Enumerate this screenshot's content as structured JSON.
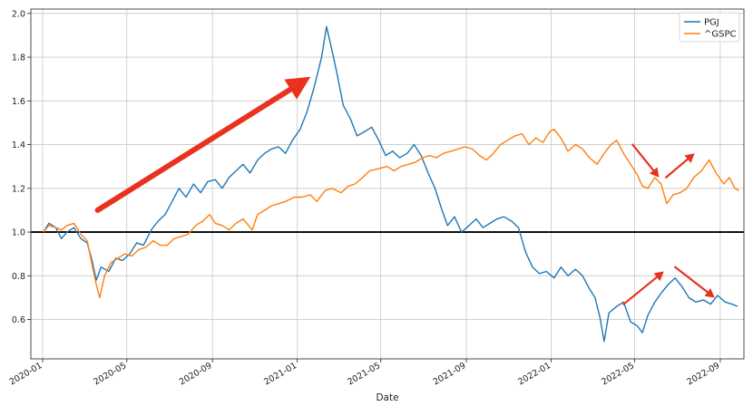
{
  "chart_data": {
    "type": "line",
    "title": "",
    "xlabel": "Date",
    "ylabel": "",
    "x_ticks": [
      "2020-01",
      "2020-05",
      "2020-09",
      "2021-01",
      "2021-05",
      "2021-09",
      "2022-01",
      "2022-05",
      "2022-09"
    ],
    "y_ticks": [
      "0.6",
      "0.8",
      "1.0",
      "1.2",
      "1.4",
      "1.6",
      "1.8",
      "2.0"
    ],
    "xlim": [
      "2019-12-15",
      "2022-10-05"
    ],
    "ylim": [
      0.42,
      2.02
    ],
    "grid": true,
    "legend_position": "top-right",
    "reference_line": {
      "y": 1.0,
      "color": "#000000"
    },
    "series": [
      {
        "name": "PGJ",
        "color": "#1f77b4",
        "points": [
          [
            "2020-01-02",
            1.0
          ],
          [
            "2020-01-10",
            1.04
          ],
          [
            "2020-01-20",
            1.02
          ],
          [
            "2020-01-28",
            0.97
          ],
          [
            "2020-02-05",
            1.0
          ],
          [
            "2020-02-15",
            1.02
          ],
          [
            "2020-02-25",
            0.97
          ],
          [
            "2020-03-05",
            0.95
          ],
          [
            "2020-03-12",
            0.87
          ],
          [
            "2020-03-18",
            0.78
          ],
          [
            "2020-03-25",
            0.84
          ],
          [
            "2020-04-05",
            0.82
          ],
          [
            "2020-04-15",
            0.88
          ],
          [
            "2020-04-25",
            0.87
          ],
          [
            "2020-05-05",
            0.9
          ],
          [
            "2020-05-15",
            0.95
          ],
          [
            "2020-05-25",
            0.94
          ],
          [
            "2020-06-05",
            1.01
          ],
          [
            "2020-06-15",
            1.05
          ],
          [
            "2020-06-25",
            1.08
          ],
          [
            "2020-07-05",
            1.14
          ],
          [
            "2020-07-15",
            1.2
          ],
          [
            "2020-07-25",
            1.16
          ],
          [
            "2020-08-05",
            1.22
          ],
          [
            "2020-08-15",
            1.18
          ],
          [
            "2020-08-25",
            1.23
          ],
          [
            "2020-09-05",
            1.24
          ],
          [
            "2020-09-15",
            1.2
          ],
          [
            "2020-09-25",
            1.25
          ],
          [
            "2020-10-05",
            1.28
          ],
          [
            "2020-10-15",
            1.31
          ],
          [
            "2020-10-25",
            1.27
          ],
          [
            "2020-11-05",
            1.33
          ],
          [
            "2020-11-15",
            1.36
          ],
          [
            "2020-11-25",
            1.38
          ],
          [
            "2020-12-05",
            1.39
          ],
          [
            "2020-12-15",
            1.36
          ],
          [
            "2020-12-25",
            1.42
          ],
          [
            "2021-01-05",
            1.47
          ],
          [
            "2021-01-15",
            1.55
          ],
          [
            "2021-01-25",
            1.66
          ],
          [
            "2021-02-05",
            1.8
          ],
          [
            "2021-02-12",
            1.94
          ],
          [
            "2021-02-20",
            1.83
          ],
          [
            "2021-02-28",
            1.71
          ],
          [
            "2021-03-08",
            1.58
          ],
          [
            "2021-03-18",
            1.52
          ],
          [
            "2021-03-28",
            1.44
          ],
          [
            "2021-04-08",
            1.46
          ],
          [
            "2021-04-18",
            1.48
          ],
          [
            "2021-04-28",
            1.42
          ],
          [
            "2021-05-08",
            1.35
          ],
          [
            "2021-05-18",
            1.37
          ],
          [
            "2021-05-28",
            1.34
          ],
          [
            "2021-06-08",
            1.36
          ],
          [
            "2021-06-18",
            1.4
          ],
          [
            "2021-06-28",
            1.35
          ],
          [
            "2021-07-08",
            1.27
          ],
          [
            "2021-07-18",
            1.2
          ],
          [
            "2021-07-28",
            1.1
          ],
          [
            "2021-08-05",
            1.03
          ],
          [
            "2021-08-15",
            1.07
          ],
          [
            "2021-08-25",
            1.0
          ],
          [
            "2021-09-05",
            1.03
          ],
          [
            "2021-09-15",
            1.06
          ],
          [
            "2021-09-25",
            1.02
          ],
          [
            "2021-10-05",
            1.04
          ],
          [
            "2021-10-15",
            1.06
          ],
          [
            "2021-10-25",
            1.07
          ],
          [
            "2021-11-05",
            1.05
          ],
          [
            "2021-11-15",
            1.02
          ],
          [
            "2021-11-25",
            0.91
          ],
          [
            "2021-12-05",
            0.84
          ],
          [
            "2021-12-15",
            0.81
          ],
          [
            "2021-12-25",
            0.82
          ],
          [
            "2022-01-05",
            0.79
          ],
          [
            "2022-01-15",
            0.84
          ],
          [
            "2022-01-25",
            0.8
          ],
          [
            "2022-02-05",
            0.83
          ],
          [
            "2022-02-15",
            0.8
          ],
          [
            "2022-02-25",
            0.74
          ],
          [
            "2022-03-05",
            0.7
          ],
          [
            "2022-03-12",
            0.61
          ],
          [
            "2022-03-18",
            0.5
          ],
          [
            "2022-03-25",
            0.63
          ],
          [
            "2022-04-05",
            0.66
          ],
          [
            "2022-04-15",
            0.68
          ],
          [
            "2022-04-25",
            0.59
          ],
          [
            "2022-05-05",
            0.57
          ],
          [
            "2022-05-12",
            0.54
          ],
          [
            "2022-05-20",
            0.62
          ],
          [
            "2022-05-30",
            0.68
          ],
          [
            "2022-06-08",
            0.72
          ],
          [
            "2022-06-18",
            0.76
          ],
          [
            "2022-06-28",
            0.79
          ],
          [
            "2022-07-08",
            0.75
          ],
          [
            "2022-07-18",
            0.7
          ],
          [
            "2022-07-28",
            0.68
          ],
          [
            "2022-08-08",
            0.69
          ],
          [
            "2022-08-18",
            0.67
          ],
          [
            "2022-08-28",
            0.71
          ],
          [
            "2022-09-08",
            0.68
          ],
          [
            "2022-09-18",
            0.67
          ],
          [
            "2022-09-26",
            0.66
          ]
        ]
      },
      {
        "name": "^GSPC",
        "color": "#ff7f0e",
        "points": [
          [
            "2020-01-02",
            1.0
          ],
          [
            "2020-01-10",
            1.03
          ],
          [
            "2020-01-20",
            1.02
          ],
          [
            "2020-01-28",
            1.01
          ],
          [
            "2020-02-05",
            1.03
          ],
          [
            "2020-02-15",
            1.04
          ],
          [
            "2020-02-25",
            0.99
          ],
          [
            "2020-03-05",
            0.96
          ],
          [
            "2020-03-12",
            0.85
          ],
          [
            "2020-03-18",
            0.76
          ],
          [
            "2020-03-23",
            0.7
          ],
          [
            "2020-03-30",
            0.8
          ],
          [
            "2020-04-08",
            0.86
          ],
          [
            "2020-04-18",
            0.88
          ],
          [
            "2020-04-28",
            0.9
          ],
          [
            "2020-05-08",
            0.89
          ],
          [
            "2020-05-18",
            0.92
          ],
          [
            "2020-05-28",
            0.93
          ],
          [
            "2020-06-08",
            0.96
          ],
          [
            "2020-06-18",
            0.94
          ],
          [
            "2020-06-28",
            0.94
          ],
          [
            "2020-07-08",
            0.97
          ],
          [
            "2020-07-18",
            0.98
          ],
          [
            "2020-07-28",
            0.99
          ],
          [
            "2020-08-08",
            1.03
          ],
          [
            "2020-08-18",
            1.05
          ],
          [
            "2020-08-28",
            1.08
          ],
          [
            "2020-09-05",
            1.04
          ],
          [
            "2020-09-15",
            1.03
          ],
          [
            "2020-09-25",
            1.01
          ],
          [
            "2020-10-05",
            1.04
          ],
          [
            "2020-10-15",
            1.06
          ],
          [
            "2020-10-28",
            1.01
          ],
          [
            "2020-11-05",
            1.08
          ],
          [
            "2020-11-15",
            1.1
          ],
          [
            "2020-11-25",
            1.12
          ],
          [
            "2020-12-05",
            1.13
          ],
          [
            "2020-12-15",
            1.14
          ],
          [
            "2020-12-28",
            1.16
          ],
          [
            "2021-01-08",
            1.16
          ],
          [
            "2021-01-20",
            1.17
          ],
          [
            "2021-01-29",
            1.14
          ],
          [
            "2021-02-10",
            1.19
          ],
          [
            "2021-02-20",
            1.2
          ],
          [
            "2021-03-05",
            1.18
          ],
          [
            "2021-03-15",
            1.21
          ],
          [
            "2021-03-25",
            1.22
          ],
          [
            "2021-04-05",
            1.25
          ],
          [
            "2021-04-15",
            1.28
          ],
          [
            "2021-04-28",
            1.29
          ],
          [
            "2021-05-10",
            1.3
          ],
          [
            "2021-05-20",
            1.28
          ],
          [
            "2021-05-30",
            1.3
          ],
          [
            "2021-06-10",
            1.31
          ],
          [
            "2021-06-20",
            1.32
          ],
          [
            "2021-06-30",
            1.34
          ],
          [
            "2021-07-10",
            1.35
          ],
          [
            "2021-07-20",
            1.34
          ],
          [
            "2021-07-30",
            1.36
          ],
          [
            "2021-08-10",
            1.37
          ],
          [
            "2021-08-20",
            1.38
          ],
          [
            "2021-08-30",
            1.39
          ],
          [
            "2021-09-10",
            1.38
          ],
          [
            "2021-09-20",
            1.35
          ],
          [
            "2021-09-30",
            1.33
          ],
          [
            "2021-10-10",
            1.36
          ],
          [
            "2021-10-20",
            1.4
          ],
          [
            "2021-10-30",
            1.42
          ],
          [
            "2021-11-10",
            1.44
          ],
          [
            "2021-11-20",
            1.45
          ],
          [
            "2021-11-30",
            1.4
          ],
          [
            "2021-12-10",
            1.43
          ],
          [
            "2021-12-20",
            1.41
          ],
          [
            "2021-12-30",
            1.46
          ],
          [
            "2022-01-05",
            1.47
          ],
          [
            "2022-01-15",
            1.43
          ],
          [
            "2022-01-25",
            1.37
          ],
          [
            "2022-02-05",
            1.4
          ],
          [
            "2022-02-15",
            1.38
          ],
          [
            "2022-02-25",
            1.34
          ],
          [
            "2022-03-08",
            1.31
          ],
          [
            "2022-03-18",
            1.36
          ],
          [
            "2022-03-28",
            1.4
          ],
          [
            "2022-04-05",
            1.42
          ],
          [
            "2022-04-15",
            1.36
          ],
          [
            "2022-04-25",
            1.31
          ],
          [
            "2022-05-05",
            1.26
          ],
          [
            "2022-05-12",
            1.21
          ],
          [
            "2022-05-20",
            1.2
          ],
          [
            "2022-05-30",
            1.25
          ],
          [
            "2022-06-08",
            1.22
          ],
          [
            "2022-06-16",
            1.13
          ],
          [
            "2022-06-25",
            1.17
          ],
          [
            "2022-07-05",
            1.18
          ],
          [
            "2022-07-15",
            1.2
          ],
          [
            "2022-07-25",
            1.25
          ],
          [
            "2022-08-05",
            1.28
          ],
          [
            "2022-08-16",
            1.33
          ],
          [
            "2022-08-26",
            1.27
          ],
          [
            "2022-09-06",
            1.22
          ],
          [
            "2022-09-14",
            1.25
          ],
          [
            "2022-09-22",
            1.2
          ],
          [
            "2022-09-28",
            1.19
          ]
        ]
      }
    ]
  },
  "annotations": {
    "arrow_color": "#e8321e",
    "arrows": [
      {
        "from": [
          "2020-03-20",
          1.1
        ],
        "to": [
          "2021-01-20",
          1.71
        ]
      },
      {
        "from": [
          "2022-04-28",
          1.4
        ],
        "to": [
          "2022-06-05",
          1.25
        ]
      },
      {
        "from": [
          "2022-06-15",
          1.25
        ],
        "to": [
          "2022-07-26",
          1.36
        ]
      },
      {
        "from": [
          "2022-04-15",
          0.67
        ],
        "to": [
          "2022-06-12",
          0.82
        ]
      },
      {
        "from": [
          "2022-06-28",
          0.84
        ],
        "to": [
          "2022-08-24",
          0.7
        ]
      }
    ]
  }
}
